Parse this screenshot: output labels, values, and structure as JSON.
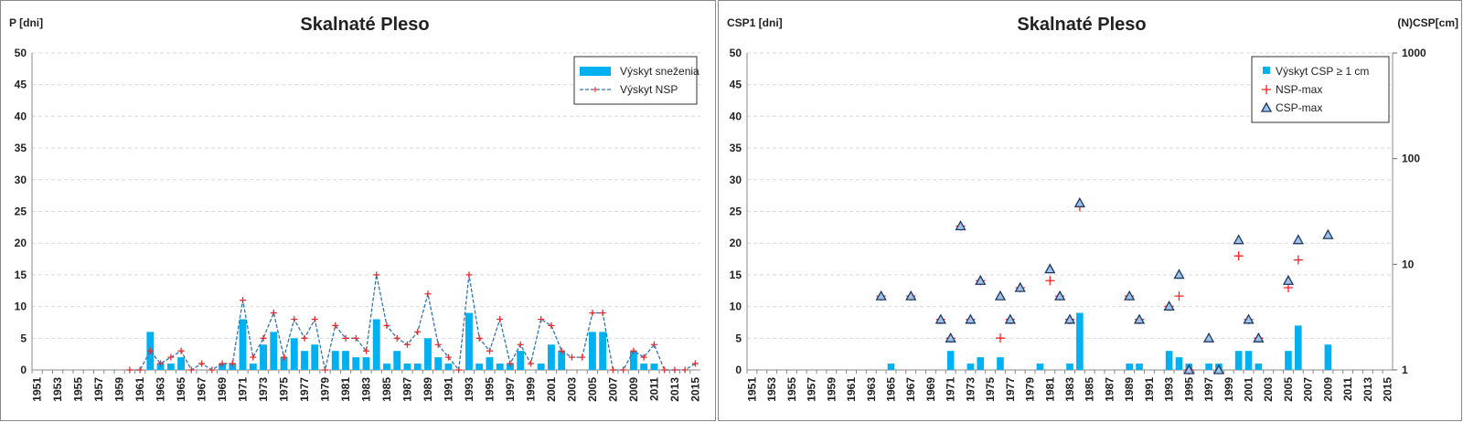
{
  "chart_data": [
    {
      "type": "bar",
      "title": "Skalnaté Pleso",
      "ylabel": "P [dni]",
      "categories": [
        "1951",
        null,
        "1953",
        null,
        "1955",
        null,
        "1957",
        null,
        "1959",
        null,
        "1961",
        null,
        "1963",
        null,
        "1965",
        null,
        "1967",
        null,
        "1969",
        null,
        "1971",
        null,
        "1973",
        null,
        "1975",
        null,
        "1977",
        null,
        "1979",
        null,
        "1981",
        null,
        "1983",
        null,
        "1985",
        null,
        "1987",
        null,
        "1989",
        null,
        "1991",
        null,
        "1993",
        null,
        "1995",
        null,
        "1997",
        null,
        "1999",
        null,
        "2001",
        null,
        "2003",
        null,
        "2005",
        null,
        "2007",
        null,
        "2009",
        null,
        "2011",
        null,
        "2013",
        null,
        "2015"
      ],
      "ylim": [
        0,
        50
      ],
      "yticks": [
        0,
        5,
        10,
        15,
        20,
        25,
        30,
        35,
        40,
        45,
        50
      ],
      "grid": true,
      "legend": "upper right",
      "series": [
        {
          "name": "Výskyt sneženia",
          "type": "bar",
          "color": "#00b0f0",
          "values": [
            null,
            null,
            null,
            null,
            null,
            null,
            null,
            null,
            null,
            0,
            0,
            6,
            1,
            1,
            2,
            0,
            0,
            0,
            1,
            1,
            8,
            1,
            4,
            6,
            2,
            5,
            3,
            4,
            0,
            3,
            3,
            2,
            2,
            8,
            1,
            3,
            1,
            1,
            5,
            2,
            1,
            0,
            9,
            1,
            2,
            1,
            1,
            3,
            0,
            1,
            4,
            3,
            0,
            0,
            6,
            6,
            0,
            0,
            3,
            1,
            1,
            0,
            0,
            0,
            0
          ]
        },
        {
          "name": "Výskyt NSP",
          "type": "line",
          "color": "#2e75b6",
          "dashed": true,
          "marker": "plus",
          "marker_color": "#e03030",
          "values": [
            null,
            null,
            null,
            null,
            null,
            null,
            null,
            null,
            null,
            0,
            0,
            3,
            1,
            2,
            3,
            0,
            1,
            0,
            1,
            1,
            11,
            2,
            5,
            9,
            2,
            8,
            5,
            8,
            0,
            7,
            5,
            5,
            3,
            15,
            7,
            5,
            4,
            6,
            12,
            4,
            2,
            0,
            15,
            5,
            3,
            8,
            1,
            4,
            1,
            8,
            7,
            3,
            2,
            2,
            9,
            9,
            0,
            0,
            3,
            2,
            4,
            0,
            0,
            0,
            1
          ]
        }
      ]
    },
    {
      "type": "bar",
      "title": "Skalnaté Pleso",
      "ylabel": "CSP1 [dni]",
      "y2label": "(N)CSP[cm]",
      "categories": [
        "1951",
        null,
        "1953",
        null,
        "1955",
        null,
        "1957",
        null,
        "1959",
        null,
        "1961",
        null,
        "1963",
        null,
        "1965",
        null,
        "1967",
        null,
        "1969",
        null,
        "1971",
        null,
        "1973",
        null,
        "1975",
        null,
        "1977",
        null,
        "1979",
        null,
        "1981",
        null,
        "1983",
        null,
        "1985",
        null,
        "1987",
        null,
        "1989",
        null,
        "1991",
        null,
        "1993",
        null,
        "1995",
        null,
        "1997",
        null,
        "1999",
        null,
        "2001",
        null,
        "2003",
        null,
        "2005",
        null,
        "2007",
        null,
        "2009",
        null,
        "2011",
        null,
        "2013",
        null,
        "2015"
      ],
      "ylim": [
        0,
        50
      ],
      "yticks": [
        0,
        5,
        10,
        15,
        20,
        25,
        30,
        35,
        40,
        45,
        50
      ],
      "y2lim": [
        1,
        1000
      ],
      "y2ticks": [
        1,
        10,
        100,
        1000
      ],
      "y2scale": "log",
      "grid": true,
      "legend": "upper right",
      "series": [
        {
          "name": "Výskyt CSP ≥ 1 cm",
          "type": "bar",
          "color": "#00b0f0",
          "values": [
            null,
            null,
            null,
            null,
            null,
            null,
            null,
            null,
            null,
            null,
            null,
            null,
            null,
            null,
            1,
            null,
            null,
            null,
            null,
            null,
            3,
            null,
            1,
            2,
            null,
            2,
            null,
            null,
            null,
            1,
            null,
            null,
            1,
            9,
            null,
            null,
            null,
            null,
            1,
            1,
            null,
            null,
            3,
            2,
            1,
            null,
            1,
            1,
            null,
            3,
            3,
            1,
            null,
            null,
            3,
            7,
            null,
            null,
            4,
            null,
            null,
            null,
            null,
            null,
            null
          ]
        },
        {
          "name": "NSP-max",
          "type": "scatter",
          "axis": "y2",
          "marker": "plus",
          "color": "#ff2020",
          "values": [
            null,
            null,
            null,
            null,
            null,
            null,
            null,
            null,
            null,
            null,
            null,
            null,
            null,
            5,
            null,
            null,
            5,
            null,
            null,
            3,
            2,
            23,
            3,
            7,
            null,
            2,
            3,
            6,
            null,
            null,
            7,
            5,
            3,
            35,
            null,
            null,
            null,
            null,
            5,
            3,
            null,
            null,
            4,
            5,
            1,
            null,
            null,
            null,
            null,
            12,
            3,
            2,
            null,
            null,
            6,
            11,
            null,
            null,
            null,
            null,
            null,
            null,
            null,
            null,
            null
          ]
        },
        {
          "name": "CSP-max",
          "type": "scatter",
          "axis": "y2",
          "marker": "triangle",
          "color": "#9dc3e6",
          "stroke": "#1f3864",
          "values": [
            null,
            null,
            null,
            null,
            null,
            null,
            null,
            null,
            null,
            null,
            null,
            null,
            null,
            5,
            null,
            null,
            5,
            null,
            null,
            3,
            2,
            23,
            3,
            7,
            null,
            5,
            3,
            6,
            null,
            null,
            9,
            5,
            3,
            38,
            null,
            null,
            null,
            null,
            5,
            3,
            null,
            null,
            4,
            8,
            1,
            null,
            2,
            1,
            null,
            17,
            3,
            2,
            null,
            null,
            7,
            17,
            null,
            null,
            19,
            null,
            null,
            null,
            null,
            null,
            null
          ]
        }
      ]
    }
  ]
}
